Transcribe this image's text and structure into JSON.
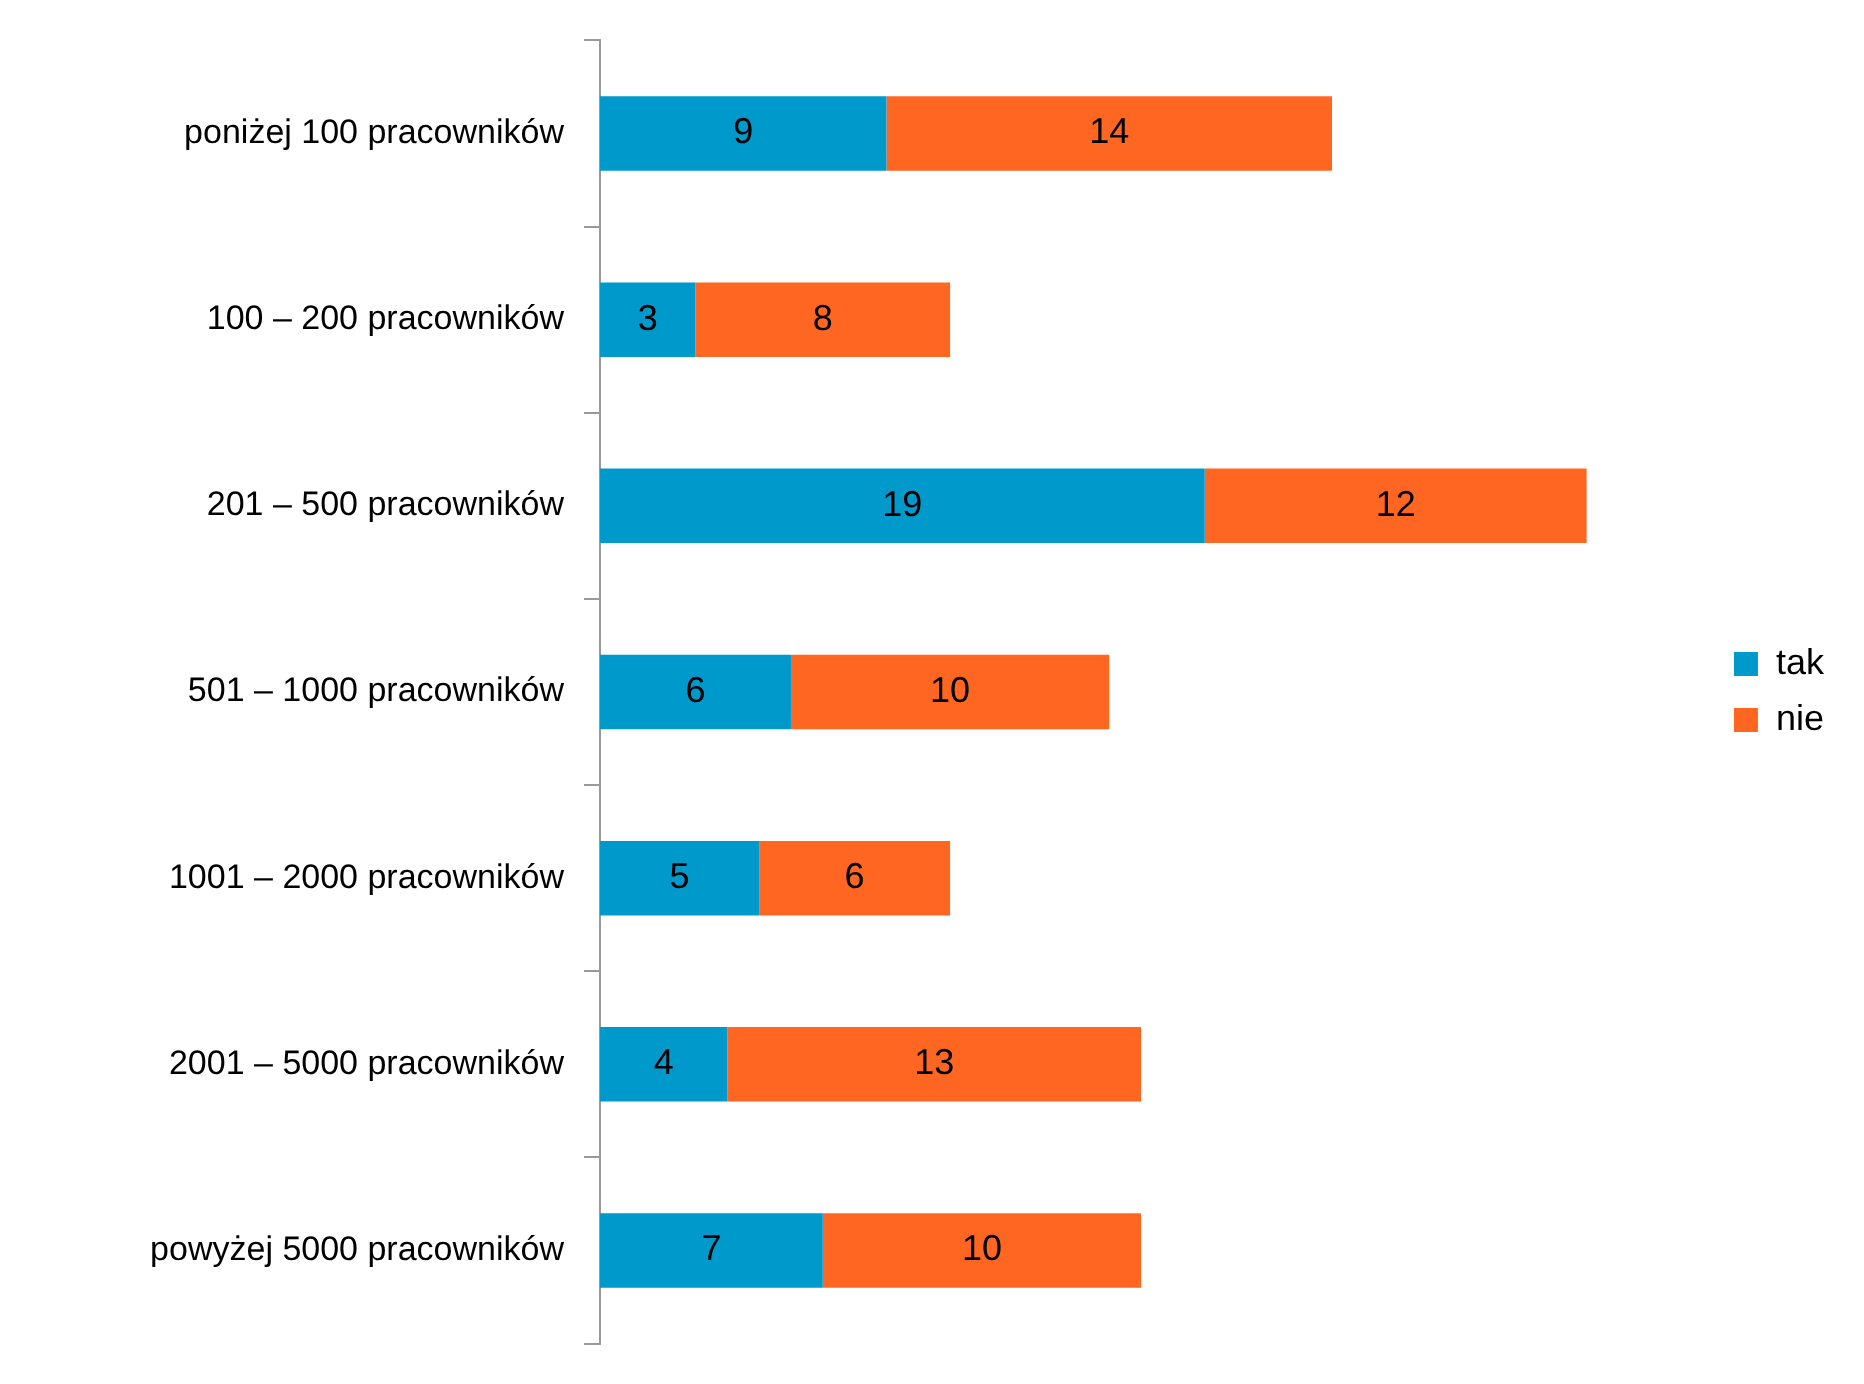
{
  "chart_data": {
    "type": "bar",
    "orientation": "horizontal",
    "stacked": true,
    "legend": "right",
    "data_labels": true,
    "categories": [
      "poniżej 100 pracowników",
      "100 – 200 pracowników",
      "201 – 500 pracowników",
      "501 – 1000 pracowników",
      "1001 – 2000 pracowników",
      "2001 – 5000 pracowników",
      "powyżej 5000 pracowników"
    ],
    "series": [
      {
        "name": "tak",
        "color": "#0099cc",
        "values": [
          9,
          3,
          19,
          6,
          5,
          4,
          7
        ]
      },
      {
        "name": "nie",
        "color": "#ff6622",
        "values": [
          14,
          8,
          12,
          10,
          6,
          13,
          10
        ]
      }
    ]
  }
}
